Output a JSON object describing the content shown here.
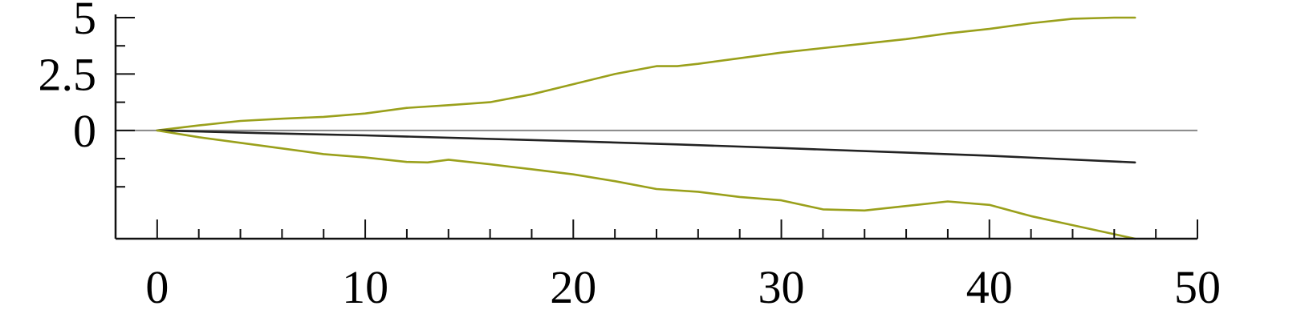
{
  "chart_data": {
    "type": "line",
    "title": "",
    "xlabel": "",
    "ylabel": "",
    "xlim": [
      -2,
      50
    ],
    "ylim": [
      -4.8,
      5
    ],
    "x_ticks": [
      0,
      10,
      20,
      30,
      40,
      50
    ],
    "x_tick_labels": [
      "0",
      "10",
      "20",
      "30",
      "40",
      "50"
    ],
    "x_minor_ticks": [
      0,
      2,
      4,
      6,
      8,
      10,
      12,
      14,
      16,
      18,
      20,
      22,
      24,
      26,
      28,
      30,
      32,
      34,
      36,
      38,
      40,
      42,
      44,
      46,
      48,
      50
    ],
    "y_ticks": [
      5,
      2.5,
      0
    ],
    "y_tick_labels": [
      "5",
      "2.5",
      "0"
    ],
    "y_minor_ticks": [
      5,
      3.75,
      2.5,
      1.25,
      0,
      -1.25,
      -2.5
    ],
    "reference_line": {
      "y": 0,
      "color": "#888888"
    },
    "grid": false,
    "legend": "none",
    "series": [
      {
        "color": "#9aa01b",
        "x": [
          0,
          2,
          4,
          6,
          8,
          10,
          12,
          14,
          16,
          18,
          20,
          22,
          24,
          25,
          26,
          28,
          30,
          32,
          34,
          36,
          38,
          40,
          42,
          44,
          46,
          47
        ],
        "y": [
          0,
          0.22,
          0.42,
          0.52,
          0.6,
          0.75,
          1.0,
          1.12,
          1.25,
          1.6,
          2.05,
          2.5,
          2.85,
          2.85,
          2.95,
          3.2,
          3.45,
          3.65,
          3.85,
          4.05,
          4.3,
          4.5,
          4.75,
          4.95,
          5.25,
          5.4
        ]
      },
      {
        "color": "#222222",
        "x": [
          0,
          5,
          10,
          15,
          20,
          25,
          30,
          35,
          40,
          47
        ],
        "y": [
          0,
          -0.12,
          -0.22,
          -0.35,
          -0.48,
          -0.62,
          -0.78,
          -0.95,
          -1.12,
          -1.42
        ]
      },
      {
        "color": "#9aa01b",
        "x": [
          0,
          2,
          4,
          6,
          8,
          10,
          12,
          13,
          14,
          16,
          18,
          20,
          22,
          24,
          26,
          28,
          30,
          32,
          34,
          36,
          38,
          40,
          42,
          44,
          46,
          47
        ],
        "y": [
          0,
          -0.3,
          -0.55,
          -0.8,
          -1.05,
          -1.2,
          -1.4,
          -1.42,
          -1.3,
          -1.5,
          -1.72,
          -1.95,
          -2.25,
          -2.6,
          -2.72,
          -2.95,
          -3.1,
          -3.5,
          -3.55,
          -3.35,
          -3.15,
          -3.3,
          -3.8,
          -4.2,
          -4.6,
          -4.8
        ]
      }
    ]
  }
}
